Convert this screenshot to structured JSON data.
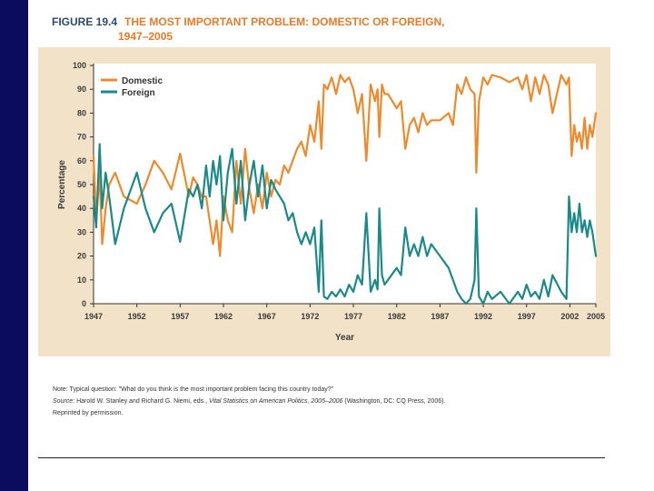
{
  "figure": {
    "label": "FIGURE 19.4",
    "title_line1": "THE MOST IMPORTANT PROBLEM: DOMESTIC OR FOREIGN,",
    "title_line2": "1947–2005"
  },
  "colors": {
    "domestic": "#ec8a2c",
    "foreign": "#1a8a88",
    "panel": "#f2e2c7",
    "sidebar": "#0b0c5e"
  },
  "chart_data": {
    "type": "line",
    "ylabel": "Percentage",
    "xlabel": "Year",
    "ylim": [
      0,
      100
    ],
    "xlim": [
      1947,
      2005
    ],
    "yticks": [
      "0",
      "10",
      "20",
      "30",
      "40",
      "50",
      "60",
      "70",
      "80",
      "90",
      "100"
    ],
    "xticks": [
      "1947",
      "1952",
      "1957",
      "1962",
      "1967",
      "1972",
      "1977",
      "1982",
      "1987",
      "1992",
      "1997",
      "2002",
      "2005"
    ],
    "legend": {
      "position": "top-left"
    },
    "series": [
      {
        "name": "Domestic",
        "x": [
          1947.0,
          1947.3,
          1947.7,
          1948.0,
          1948.4,
          1948.8,
          1949.5,
          1950.5,
          1952.0,
          1953.0,
          1954.0,
          1955.0,
          1956.0,
          1957.0,
          1958.0,
          1958.5,
          1959.0,
          1959.5,
          1960.0,
          1960.4,
          1960.8,
          1961.2,
          1961.6,
          1962.0,
          1962.5,
          1963.0,
          1963.5,
          1964.0,
          1964.5,
          1965.0,
          1965.5,
          1966.0,
          1966.5,
          1967.0,
          1967.5,
          1968.0,
          1968.5,
          1969.0,
          1969.5,
          1970.0,
          1970.5,
          1971.0,
          1971.5,
          1972.0,
          1972.5,
          1973.0,
          1973.3,
          1973.6,
          1974.0,
          1974.5,
          1975.0,
          1975.5,
          1976.0,
          1976.5,
          1977.0,
          1977.5,
          1978.0,
          1978.5,
          1979.0,
          1979.5,
          1979.8,
          1980.0,
          1980.3,
          1980.6,
          1981.0,
          1982.0,
          1982.5,
          1983.0,
          1983.5,
          1984.0,
          1984.5,
          1985.0,
          1985.5,
          1986.0,
          1987.0,
          1988.0,
          1988.5,
          1989.0,
          1989.5,
          1990.0,
          1990.5,
          1991.0,
          1991.2,
          1991.5,
          1992.0,
          1992.5,
          1993.0,
          1994.0,
          1995.0,
          1996.0,
          1996.5,
          1997.0,
          1997.5,
          1998.0,
          1998.5,
          1999.0,
          1999.5,
          2000.0,
          2001.0,
          2001.6,
          2001.9,
          2002.2,
          2002.5,
          2002.8,
          2003.1,
          2003.4,
          2003.7,
          2004.0,
          2004.3,
          2004.6,
          2005.0
        ],
        "values": [
          62,
          35,
          55,
          25,
          40,
          50,
          55,
          45,
          42,
          50,
          60,
          55,
          48,
          63,
          45,
          53,
          50,
          45,
          45,
          35,
          25,
          35,
          20,
          45,
          35,
          30,
          60,
          42,
          65,
          48,
          38,
          50,
          40,
          55,
          45,
          52,
          50,
          58,
          55,
          60,
          65,
          68,
          62,
          75,
          68,
          85,
          65,
          92,
          90,
          95,
          88,
          96,
          93,
          95,
          90,
          80,
          88,
          60,
          92,
          85,
          90,
          70,
          92,
          88,
          88,
          82,
          85,
          65,
          75,
          78,
          72,
          80,
          75,
          77,
          77,
          80,
          75,
          92,
          88,
          95,
          90,
          88,
          55,
          85,
          95,
          92,
          96,
          95,
          93,
          95,
          90,
          96,
          85,
          95,
          88,
          96,
          92,
          80,
          96,
          92,
          95,
          62,
          75,
          68,
          72,
          65,
          78,
          65,
          75,
          70,
          80
        ]
      },
      {
        "name": "Foreign",
        "x": [
          1947.0,
          1947.3,
          1947.7,
          1948.0,
          1948.4,
          1948.8,
          1949.5,
          1950.5,
          1952.0,
          1953.0,
          1954.0,
          1955.0,
          1956.0,
          1957.0,
          1958.0,
          1958.5,
          1959.0,
          1959.5,
          1960.0,
          1960.4,
          1960.8,
          1961.2,
          1961.6,
          1962.0,
          1962.5,
          1963.0,
          1963.5,
          1964.0,
          1964.5,
          1965.0,
          1965.5,
          1966.0,
          1966.5,
          1967.0,
          1967.5,
          1968.0,
          1968.5,
          1969.0,
          1969.5,
          1970.0,
          1970.5,
          1971.0,
          1971.5,
          1972.0,
          1972.5,
          1973.0,
          1973.3,
          1973.6,
          1974.0,
          1974.5,
          1975.0,
          1975.5,
          1976.0,
          1976.5,
          1977.0,
          1977.5,
          1978.0,
          1978.5,
          1979.0,
          1979.5,
          1979.8,
          1980.0,
          1980.3,
          1980.6,
          1981.0,
          1982.0,
          1982.5,
          1983.0,
          1983.5,
          1984.0,
          1984.5,
          1985.0,
          1985.5,
          1986.0,
          1987.0,
          1988.0,
          1988.5,
          1989.0,
          1989.5,
          1990.0,
          1990.5,
          1991.0,
          1991.2,
          1991.5,
          1992.0,
          1992.5,
          1993.0,
          1994.0,
          1995.0,
          1996.0,
          1996.5,
          1997.0,
          1997.5,
          1998.0,
          1998.5,
          1999.0,
          1999.5,
          2000.0,
          2001.0,
          2001.6,
          2001.9,
          2002.2,
          2002.5,
          2002.8,
          2003.1,
          2003.4,
          2003.7,
          2004.0,
          2004.3,
          2004.6,
          2005.0
        ],
        "values": [
          45,
          32,
          67,
          40,
          55,
          45,
          25,
          40,
          55,
          40,
          30,
          38,
          42,
          26,
          48,
          45,
          50,
          40,
          58,
          45,
          60,
          50,
          62,
          35,
          55,
          65,
          42,
          60,
          35,
          50,
          60,
          45,
          58,
          40,
          52,
          48,
          45,
          42,
          35,
          38,
          30,
          25,
          30,
          25,
          32,
          5,
          35,
          3,
          2,
          5,
          3,
          6,
          3,
          8,
          5,
          12,
          8,
          38,
          5,
          10,
          6,
          40,
          12,
          8,
          10,
          15,
          12,
          32,
          20,
          25,
          20,
          28,
          20,
          25,
          20,
          15,
          10,
          5,
          2,
          0,
          2,
          10,
          40,
          3,
          0,
          5,
          2,
          5,
          0,
          5,
          2,
          8,
          3,
          5,
          2,
          10,
          3,
          12,
          5,
          2,
          45,
          30,
          38,
          30,
          42,
          30,
          35,
          28,
          35,
          30,
          20
        ]
      }
    ]
  },
  "notes": {
    "note_text": "Note: Typical question: \"What do you think is the most important problem facing this country today?\"",
    "source_label": "Source:",
    "source_before": " Harold W. Stanley and Richard G. Niemi, eds., ",
    "source_book": "Vital Statistics on American Politics, 2005–2006",
    "source_after": " (Washington, DC: CQ Press, 2006).",
    "reprinted": "Reprinted by permission."
  }
}
